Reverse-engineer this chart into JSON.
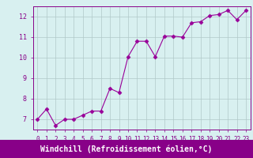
{
  "x": [
    0,
    1,
    2,
    3,
    4,
    5,
    6,
    7,
    8,
    9,
    10,
    11,
    12,
    13,
    14,
    15,
    16,
    17,
    18,
    19,
    20,
    21,
    22,
    23
  ],
  "y": [
    7.0,
    7.5,
    6.7,
    7.0,
    7.0,
    7.2,
    7.4,
    7.4,
    8.5,
    8.3,
    10.05,
    10.8,
    10.8,
    10.05,
    11.05,
    11.05,
    11.0,
    11.7,
    11.75,
    12.05,
    12.1,
    12.3,
    11.85,
    12.3
  ],
  "line_color": "#990099",
  "marker": "D",
  "marker_size": 2.5,
  "bg_color": "#d8f0f0",
  "grid_color": "#b0c8c8",
  "xlabel": "Windchill (Refroidissement éolien,°C)",
  "xlabel_color": "#ffffff",
  "xlabel_bg": "#880088",
  "xlim": [
    -0.5,
    23.5
  ],
  "ylim": [
    6.5,
    12.5
  ],
  "yticks": [
    7,
    8,
    9,
    10,
    11,
    12
  ],
  "xticks": [
    0,
    1,
    2,
    3,
    4,
    5,
    6,
    7,
    8,
    9,
    10,
    11,
    12,
    13,
    14,
    15,
    16,
    17,
    18,
    19,
    20,
    21,
    22,
    23
  ],
  "tick_color": "#880088",
  "tick_fontsize": 5.5,
  "xlabel_fontsize": 7.0,
  "spine_color": "#880088"
}
